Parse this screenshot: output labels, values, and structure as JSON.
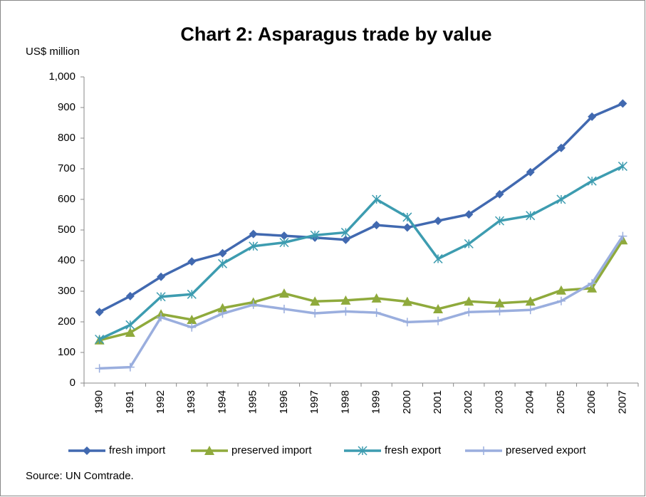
{
  "chart_data": {
    "type": "line",
    "title": "Chart 2: Asparagus trade by value",
    "y_label": "US$ million",
    "source": "Source: UN Comtrade.",
    "categories": [
      "1990",
      "1991",
      "1992",
      "1993",
      "1994",
      "1995",
      "1996",
      "1997",
      "1998",
      "1999",
      "2000",
      "2001",
      "2002",
      "2003",
      "2004",
      "2005",
      "2006",
      "2007"
    ],
    "series": [
      {
        "name": "fresh import",
        "color": "#4169b0",
        "marker": "diamond",
        "values": [
          232,
          284,
          347,
          397,
          424,
          487,
          481,
          475,
          468,
          516,
          508,
          530,
          551,
          617,
          689,
          768,
          870,
          913
        ]
      },
      {
        "name": "preserved import",
        "color": "#8faa3c",
        "marker": "triangle",
        "values": [
          140,
          165,
          225,
          207,
          245,
          264,
          293,
          267,
          270,
          277,
          266,
          242,
          267,
          261,
          267,
          303,
          310,
          467
        ]
      },
      {
        "name": "fresh export",
        "color": "#3d9cb0",
        "marker": "asterisk",
        "values": [
          143,
          190,
          282,
          290,
          390,
          447,
          459,
          483,
          492,
          600,
          542,
          406,
          455,
          530,
          547,
          600,
          660,
          708
        ]
      },
      {
        "name": "preserved export",
        "color": "#9aaede",
        "marker": "plus",
        "values": [
          48,
          52,
          215,
          182,
          227,
          256,
          242,
          228,
          234,
          230,
          199,
          203,
          232,
          235,
          239,
          268,
          326,
          480
        ]
      }
    ],
    "ylim": [
      0,
      1000
    ],
    "yticks": [
      0,
      100,
      200,
      300,
      400,
      500,
      600,
      700,
      800,
      900,
      {
        "value": 1000,
        "label": "1,000"
      }
    ],
    "grid": false,
    "legend": "bottom"
  }
}
